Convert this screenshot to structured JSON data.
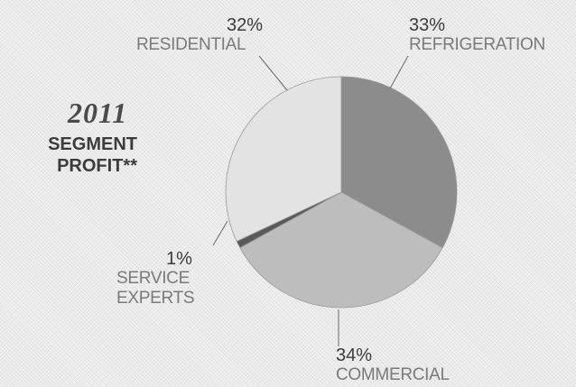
{
  "chart_data": {
    "type": "pie",
    "title_year": "2011",
    "title_lines": [
      "SEGMENT",
      "PROFIT**"
    ],
    "slices": [
      {
        "name": "REFRIGERATION",
        "percent_label": "33%",
        "value": 33,
        "color": "#8c8c8c"
      },
      {
        "name": "COMMERCIAL",
        "percent_label": "34%",
        "value": 34,
        "color": "#bdbdbd"
      },
      {
        "name_lines": [
          "SERVICE",
          "EXPERTS"
        ],
        "percent_label": "1%",
        "value": 1,
        "color": "#5a5a5a"
      },
      {
        "name": "RESIDENTIAL",
        "percent_label": "32%",
        "value": 32,
        "color": "#e3e3e3"
      }
    ],
    "start_angle_deg": 0,
    "direction": "clockwise",
    "legend": "none",
    "grid": false
  }
}
